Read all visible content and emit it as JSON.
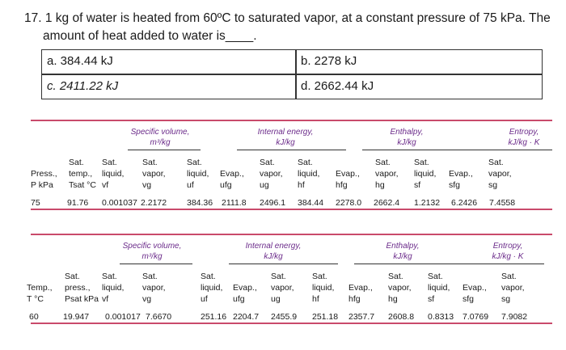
{
  "question": {
    "line1": "17. 1 kg of water is heated from 60ºC to saturated vapor, at a constant pressure of 75 kPa. The",
    "line2": "amount of heat added to water is____."
  },
  "options": {
    "a": "a. 384.44 kJ",
    "b": "b. 2278 kJ",
    "c": "c. 2411.22 kJ",
    "d": "d. 2662.44 kJ"
  },
  "table1": {
    "groups": {
      "specific_volume": "Specific volume,",
      "specific_volume_unit": "m³/kg",
      "internal_energy": "Internal energy,",
      "internal_energy_unit": "kJ/kg",
      "enthalpy": "Enthalpy,",
      "enthalpy_unit": "kJ/kg",
      "entropy": "Entropy,",
      "entropy_unit": "kJ/kg · K"
    },
    "headers": {
      "c0": [
        "",
        "Press.,",
        "P kPa"
      ],
      "c1": [
        "Sat.",
        "temp.,",
        "Tsat °C"
      ],
      "c2": [
        "Sat.",
        "liquid,",
        "vf"
      ],
      "c3": [
        "Sat.",
        "vapor,",
        "vg"
      ],
      "c4": [
        "Sat.",
        "liquid,",
        "uf"
      ],
      "c5": [
        "",
        "Evap.,",
        "ufg"
      ],
      "c6": [
        "Sat.",
        "vapor,",
        "ug"
      ],
      "c7": [
        "Sat.",
        "liquid,",
        "hf"
      ],
      "c8": [
        "",
        "Evap.,",
        "hfg"
      ],
      "c9": [
        "Sat.",
        "vapor,",
        "hg"
      ],
      "c10": [
        "Sat.",
        "liquid,",
        "sf"
      ],
      "c11": [
        "",
        "Evap.,",
        "sfg"
      ],
      "c12": [
        "Sat.",
        "vapor,",
        "sg"
      ]
    },
    "row": [
      "75",
      "91.76",
      "0.001037",
      "2.2172",
      "384.36",
      "2111.8",
      "2496.1",
      "384.44",
      "2278.0",
      "2662.4",
      "1.2132",
      "6.2426",
      "7.4558"
    ]
  },
  "table2": {
    "groups": {
      "specific_volume": "Specific volume,",
      "specific_volume_unit": "m³/kg",
      "internal_energy": "Internal energy,",
      "internal_energy_unit": "kJ/kg",
      "enthalpy": "Enthalpy,",
      "enthalpy_unit": "kJ/kg",
      "entropy": "Entropy,",
      "entropy_unit": "kJ/kg · K"
    },
    "headers": {
      "c0": [
        "",
        "Temp.,",
        "T °C"
      ],
      "c1": [
        "Sat.",
        "press.,",
        "Psat kPa"
      ],
      "c2": [
        "Sat.",
        "liquid,",
        "vf"
      ],
      "c3": [
        "Sat.",
        "vapor,",
        "vg"
      ],
      "c4": [
        "Sat.",
        "liquid,",
        "uf"
      ],
      "c5": [
        "",
        "Evap.,",
        "ufg"
      ],
      "c6": [
        "Sat.",
        "vapor,",
        "ug"
      ],
      "c7": [
        "Sat.",
        "liquid,",
        "hf"
      ],
      "c8": [
        "",
        "Evap.,",
        "hfg"
      ],
      "c9": [
        "Sat.",
        "vapor,",
        "hg"
      ],
      "c10": [
        "Sat.",
        "liquid,",
        "sf"
      ],
      "c11": [
        "",
        "Evap.,",
        "sfg"
      ],
      "c12": [
        "Sat.",
        "vapor,",
        "sg"
      ]
    },
    "row": [
      "60",
      "19.947",
      "0.001017",
      "7.6670",
      "251.16",
      "2204.7",
      "2455.9",
      "251.18",
      "2357.7",
      "2608.8",
      "0.8313",
      "7.0769",
      "7.9082"
    ]
  },
  "colors": {
    "rule": "#c94a6b",
    "group_label": "#6b2b8a"
  }
}
